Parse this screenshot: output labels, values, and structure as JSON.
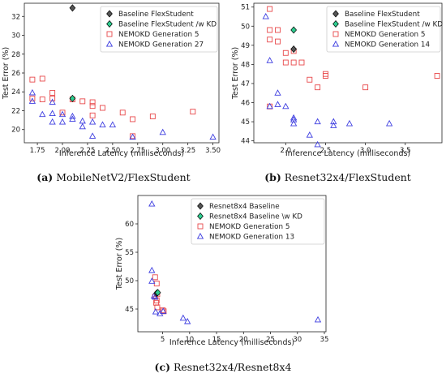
{
  "colors": {
    "baseline": "#555555",
    "kd": "#2ecc8f",
    "gen": "#e8484a",
    "gen_late": "#3e3ee0"
  },
  "chart_data": [
    {
      "id": "a",
      "type": "scatter",
      "caption_letter": "(a)",
      "caption_text": "MobileNetV2/FlexStudent",
      "xlabel": "Inference Latency (milliseconds)",
      "ylabel": "Test Error (%)",
      "xlim": [
        1.62,
        3.56
      ],
      "ylim": [
        18.6,
        33.4
      ],
      "xticks": [
        1.75,
        2.0,
        2.25,
        2.5,
        2.75,
        3.0,
        3.25,
        3.5
      ],
      "xtick_labels": [
        "1.75",
        "2.00",
        "2.25",
        "2.50",
        "2.75",
        "3.00",
        "3.25",
        "3.50"
      ],
      "yticks": [
        20,
        22,
        24,
        26,
        28,
        30,
        32
      ],
      "ytick_labels": [
        "20",
        "22",
        "24",
        "26",
        "28",
        "30",
        "32"
      ],
      "legend_position": "top-right",
      "series": [
        {
          "name": "Baseline FlexStudent",
          "marker": "diamond",
          "color_key": "baseline",
          "points": [
            [
              2.1,
              32.9
            ]
          ]
        },
        {
          "name": "Baseline FlexStudent /w KD",
          "marker": "diamond",
          "color_key": "kd",
          "points": [
            [
              2.1,
              23.3
            ]
          ]
        },
        {
          "name": "NEMOKD Generation 5",
          "marker": "square",
          "color_key": "gen",
          "points": [
            [
              1.7,
              25.3
            ],
            [
              1.8,
              25.4
            ],
            [
              1.9,
              23.9
            ],
            [
              1.9,
              23.3
            ],
            [
              1.7,
              23.3
            ],
            [
              1.8,
              23.2
            ],
            [
              2.1,
              23.2
            ],
            [
              2.2,
              23.0
            ],
            [
              2.3,
              22.9
            ],
            [
              2.3,
              22.5
            ],
            [
              2.4,
              22.3
            ],
            [
              2.0,
              21.8
            ],
            [
              2.3,
              21.5
            ],
            [
              2.6,
              21.8
            ],
            [
              2.9,
              21.4
            ],
            [
              3.3,
              21.9
            ],
            [
              2.7,
              21.1
            ],
            [
              2.7,
              19.3
            ]
          ]
        },
        {
          "name": "NEMOKD Generation 27",
          "marker": "triangle",
          "color_key": "gen_late",
          "points": [
            [
              1.7,
              23.9
            ],
            [
              1.7,
              23.0
            ],
            [
              1.9,
              22.9
            ],
            [
              1.8,
              21.6
            ],
            [
              1.9,
              21.7
            ],
            [
              2.0,
              21.6
            ],
            [
              2.1,
              21.4
            ],
            [
              2.1,
              21.1
            ],
            [
              2.2,
              20.9
            ],
            [
              2.2,
              20.3
            ],
            [
              1.9,
              20.8
            ],
            [
              2.0,
              20.8
            ],
            [
              2.3,
              20.8
            ],
            [
              2.4,
              20.5
            ],
            [
              2.5,
              20.5
            ],
            [
              3.0,
              19.7
            ],
            [
              2.3,
              19.3
            ],
            [
              3.5,
              19.2
            ],
            [
              2.7,
              19.2
            ]
          ]
        }
      ]
    },
    {
      "id": "b",
      "type": "scatter",
      "caption_letter": "(b)",
      "caption_text": "Resnet32x4/FlexStudent",
      "xlabel": "Inference Latency (milliseconds)",
      "ylabel": "Test Error (%)",
      "xlim": [
        1.6,
        3.96
      ],
      "ylim": [
        43.9,
        51.2
      ],
      "xticks": [
        2.0,
        2.5,
        3.0,
        3.5
      ],
      "xtick_labels": [
        "2.0",
        "2.5",
        "3.0",
        "3.5"
      ],
      "yticks": [
        44,
        45,
        46,
        47,
        48,
        49,
        50,
        51
      ],
      "ytick_labels": [
        "44",
        "45",
        "46",
        "47",
        "48",
        "49",
        "50",
        "51"
      ],
      "legend_position": "top-right",
      "series": [
        {
          "name": "Baseline FlexStudent",
          "marker": "diamond",
          "color_key": "baseline",
          "points": [
            [
              2.1,
              48.8
            ]
          ]
        },
        {
          "name": "Baseline FlexStudent /w KD",
          "marker": "diamond",
          "color_key": "kd",
          "points": [
            [
              2.1,
              49.8
            ]
          ]
        },
        {
          "name": "NEMOKD Generation 5",
          "marker": "square",
          "color_key": "gen",
          "points": [
            [
              1.8,
              50.9
            ],
            [
              1.8,
              49.8
            ],
            [
              1.9,
              49.8
            ],
            [
              1.8,
              49.3
            ],
            [
              1.9,
              49.2
            ],
            [
              2.0,
              48.6
            ],
            [
              2.1,
              48.7
            ],
            [
              2.0,
              48.1
            ],
            [
              2.1,
              48.1
            ],
            [
              2.2,
              48.1
            ],
            [
              2.5,
              47.5
            ],
            [
              2.5,
              47.4
            ],
            [
              2.3,
              47.2
            ],
            [
              2.4,
              46.8
            ],
            [
              3.0,
              46.8
            ],
            [
              3.9,
              47.4
            ],
            [
              1.8,
              45.8
            ]
          ]
        },
        {
          "name": "NEMOKD Generation 14",
          "marker": "triangle",
          "color_key": "gen_late",
          "points": [
            [
              1.75,
              50.5
            ],
            [
              1.8,
              48.2
            ],
            [
              1.9,
              46.5
            ],
            [
              1.9,
              45.9
            ],
            [
              2.0,
              45.8
            ],
            [
              1.8,
              45.8
            ],
            [
              2.1,
              45.2
            ],
            [
              2.1,
              45.1
            ],
            [
              2.1,
              44.9
            ],
            [
              2.4,
              45.0
            ],
            [
              2.6,
              45.0
            ],
            [
              2.6,
              44.8
            ],
            [
              2.8,
              44.9
            ],
            [
              3.3,
              44.9
            ],
            [
              2.3,
              44.3
            ],
            [
              2.4,
              43.8
            ]
          ]
        }
      ]
    },
    {
      "id": "c",
      "type": "scatter",
      "caption_letter": "(c)",
      "caption_text": "Resnet32x4/Resnet8x4",
      "xlabel": "Inference Latency (milliseconds)",
      "ylabel": "Test Error (%)",
      "xlim": [
        0.4,
        35.3
      ],
      "ylim": [
        41.0,
        65.0
      ],
      "xticks": [
        5,
        10,
        15,
        20,
        25,
        30,
        35
      ],
      "xtick_labels": [
        "5",
        "10",
        "15",
        "20",
        "25",
        "30",
        "35"
      ],
      "yticks": [
        45,
        50,
        55,
        60
      ],
      "ytick_labels": [
        "45",
        "50",
        "55",
        "60"
      ],
      "legend_position": "top-right",
      "series": [
        {
          "name": "Resnet8x4 Baseline",
          "marker": "diamond",
          "color_key": "baseline",
          "points": [
            [
              3.9,
              47.8
            ]
          ]
        },
        {
          "name": "Resnet8x4 Baseline \\w KD",
          "marker": "diamond",
          "color_key": "kd",
          "points": [
            [
              4.1,
              47.9
            ]
          ]
        },
        {
          "name": "NEMOKD Generation 5",
          "marker": "square",
          "color_key": "gen",
          "points": [
            [
              3.6,
              50.6
            ],
            [
              3.9,
              49.5
            ],
            [
              3.6,
              47.2
            ],
            [
              4.0,
              47.6
            ],
            [
              3.9,
              46.5
            ],
            [
              3.8,
              46.1
            ],
            [
              4.0,
              45.3
            ],
            [
              5.0,
              44.8
            ],
            [
              5.2,
              44.6
            ]
          ]
        },
        {
          "name": "NEMOKD Generation 13",
          "marker": "triangle",
          "color_key": "gen_late",
          "points": [
            [
              3.0,
              63.5
            ],
            [
              3.0,
              51.8
            ],
            [
              3.0,
              49.9
            ],
            [
              3.4,
              47.3
            ],
            [
              3.6,
              47.1
            ],
            [
              3.7,
              44.5
            ],
            [
              4.5,
              44.2
            ],
            [
              5.1,
              44.6
            ],
            [
              8.8,
              43.4
            ],
            [
              9.6,
              42.8
            ],
            [
              33.8,
              43.1
            ]
          ]
        }
      ]
    }
  ]
}
